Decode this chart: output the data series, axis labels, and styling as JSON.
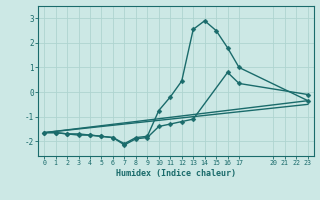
{
  "title": "",
  "xlabel": "Humidex (Indice chaleur)",
  "ylabel": "",
  "xlim": [
    -0.5,
    23.5
  ],
  "ylim": [
    -2.6,
    3.5
  ],
  "xticks": [
    0,
    1,
    2,
    3,
    4,
    5,
    6,
    7,
    8,
    9,
    10,
    11,
    12,
    13,
    14,
    15,
    16,
    17,
    20,
    21,
    22,
    23
  ],
  "yticks": [
    -2,
    -1,
    0,
    1,
    2,
    3
  ],
  "background_color": "#cce8e5",
  "grid_color": "#afd4d0",
  "line_color": "#1a6b6b",
  "marker": "D",
  "markersize": 2.5,
  "linewidth": 1.0,
  "line1_x": [
    0,
    1,
    2,
    3,
    4,
    5,
    6,
    7,
    8,
    9,
    10,
    11,
    12,
    13,
    14,
    15,
    16,
    17,
    23
  ],
  "line1_y": [
    -1.65,
    -1.65,
    -1.7,
    -1.7,
    -1.75,
    -1.8,
    -1.85,
    -2.1,
    -1.85,
    -1.8,
    -0.75,
    -0.2,
    0.45,
    2.55,
    2.9,
    2.5,
    1.8,
    1.0,
    -0.35
  ],
  "line2_x": [
    0,
    1,
    2,
    3,
    4,
    5,
    6,
    7,
    8,
    9,
    10,
    11,
    12,
    13,
    16,
    17,
    23
  ],
  "line2_y": [
    -1.65,
    -1.65,
    -1.7,
    -1.75,
    -1.75,
    -1.8,
    -1.85,
    -2.15,
    -1.9,
    -1.85,
    -1.4,
    -1.3,
    -1.2,
    -1.1,
    0.8,
    0.35,
    -0.1
  ],
  "line3_x": [
    0,
    23
  ],
  "line3_y": [
    -1.65,
    -0.35
  ],
  "line4_x": [
    0,
    23
  ],
  "line4_y": [
    -1.65,
    -0.5
  ]
}
